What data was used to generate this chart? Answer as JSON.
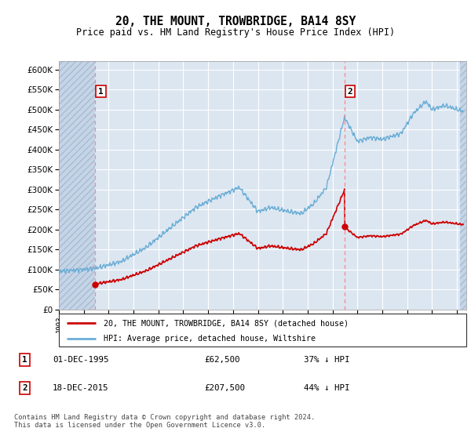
{
  "title": "20, THE MOUNT, TROWBRIDGE, BA14 8SY",
  "subtitle": "Price paid vs. HM Land Registry's House Price Index (HPI)",
  "yticks": [
    0,
    50000,
    100000,
    150000,
    200000,
    250000,
    300000,
    350000,
    400000,
    450000,
    500000,
    550000,
    600000
  ],
  "ylim": [
    0,
    620000
  ],
  "sale1_year": 1995.92,
  "sale1_price": 62500,
  "sale2_year": 2015.96,
  "sale2_price": 207500,
  "legend_line1": "20, THE MOUNT, TROWBRIDGE, BA14 8SY (detached house)",
  "legend_line2": "HPI: Average price, detached house, Wiltshire",
  "footnote": "Contains HM Land Registry data © Crown copyright and database right 2024.\nThis data is licensed under the Open Government Licence v3.0.",
  "hpi_color": "#6baed6",
  "price_color": "#cc0000",
  "vline_color": "#ff8888",
  "plot_bg": "#dce6f1",
  "hatch_bg": "#c5d5e8"
}
